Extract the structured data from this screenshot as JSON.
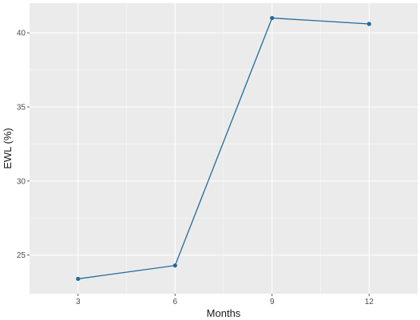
{
  "chart_data": {
    "type": "line",
    "title": "",
    "xlabel": "Months",
    "ylabel": "EWL (%)",
    "x": [
      3,
      6,
      9,
      12
    ],
    "series": [
      {
        "values": [
          23.4,
          24.3,
          41.0,
          40.6
        ]
      }
    ],
    "xlim": [
      1.5,
      13.5
    ],
    "ylim": [
      22.4,
      42.0
    ],
    "xticks": [
      3,
      6,
      9,
      12
    ],
    "yticks": [
      25,
      30,
      35,
      40
    ],
    "grid": true,
    "colors": {
      "panel": "#ebebeb",
      "grid_major": "#ffffff",
      "line": "#1f6a9a",
      "tick_text": "#4d4d4d",
      "axis_title": "#1a1a1a"
    }
  }
}
